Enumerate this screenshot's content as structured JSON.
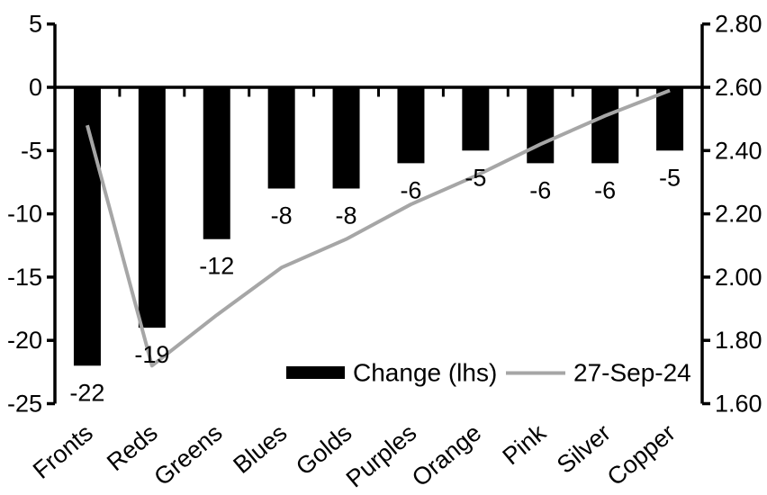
{
  "chart_data": {
    "type": "combo",
    "title": "",
    "categories": [
      "Fronts",
      "Reds",
      "Greens",
      "Blues",
      "Golds",
      "Purples",
      "Orange",
      "Pink",
      "Silver",
      "Copper"
    ],
    "series": [
      {
        "name": "Change (lhs)",
        "type": "bar",
        "axis": "left",
        "color": "#000000",
        "values": [
          -22,
          -19,
          -12,
          -8,
          -8,
          -6,
          -5,
          -6,
          -6,
          -5
        ],
        "data_labels": [
          "-22",
          "-19",
          "-12",
          "-8",
          "-8",
          "-6",
          "-5",
          "-6",
          "-6",
          "-5"
        ]
      },
      {
        "name": "27-Sep-24",
        "type": "line",
        "axis": "right",
        "color": "#A6A6A6",
        "values": [
          2.48,
          1.72,
          1.88,
          2.03,
          2.12,
          2.23,
          2.32,
          2.42,
          2.51,
          2.59
        ]
      }
    ],
    "axes": {
      "left": {
        "min": -25,
        "max": 5,
        "step": 5,
        "tick_labels": [
          "5",
          "0",
          "-5",
          "-10",
          "-15",
          "-20",
          "-25"
        ]
      },
      "right": {
        "min": 1.6,
        "max": 2.8,
        "step": 0.2,
        "tick_labels": [
          "2.80",
          "2.60",
          "2.40",
          "2.20",
          "2.00",
          "1.80",
          "1.60"
        ]
      }
    },
    "grid": false,
    "legend": {
      "position": "bottom-inside",
      "items": [
        {
          "label": "Change (lhs)",
          "swatch": "bar",
          "color": "#000000"
        },
        {
          "label": "27-Sep-24",
          "swatch": "line",
          "color": "#A6A6A6"
        }
      ]
    },
    "colors": {
      "background": "#FFFFFF",
      "axis": "#000000",
      "text": "#000000"
    }
  }
}
